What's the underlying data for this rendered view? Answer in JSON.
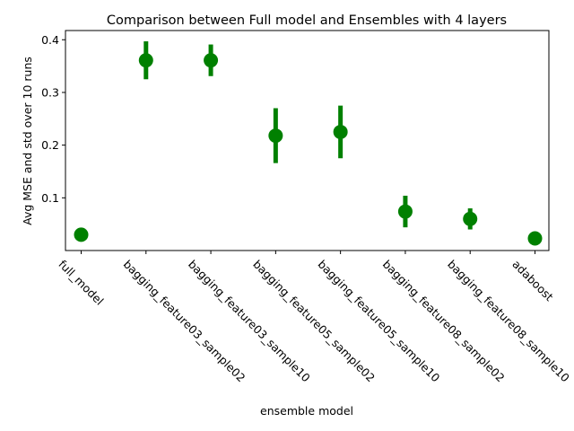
{
  "chart_data": {
    "type": "scatter",
    "title": "Comparison between Full model and Ensembles with 4 layers",
    "xlabel": "ensemble model",
    "ylabel": "Avg MSE and std over 10 runs",
    "categories": [
      "full_model",
      "bagging_feature03_sample02",
      "bagging_feature03_sample10",
      "bagging_feature05_sample02",
      "bagging_feature05_sample10",
      "bagging_feature08_sample02",
      "bagging_feature08_sample10",
      "adaboost"
    ],
    "series": [
      {
        "values": [
          0.03,
          0.361,
          0.361,
          0.218,
          0.225,
          0.074,
          0.06,
          0.023
        ],
        "std": [
          0.0,
          0.036,
          0.03,
          0.052,
          0.05,
          0.03,
          0.02,
          0.0
        ],
        "color": "#008000"
      }
    ],
    "yticks": [
      0.1,
      0.2,
      0.3,
      0.4
    ],
    "ytick_labels": [
      "0.1",
      "0.2",
      "0.3",
      "0.4"
    ],
    "ylim": [
      0.0,
      0.4175
    ],
    "grid": false,
    "legend": "none"
  }
}
